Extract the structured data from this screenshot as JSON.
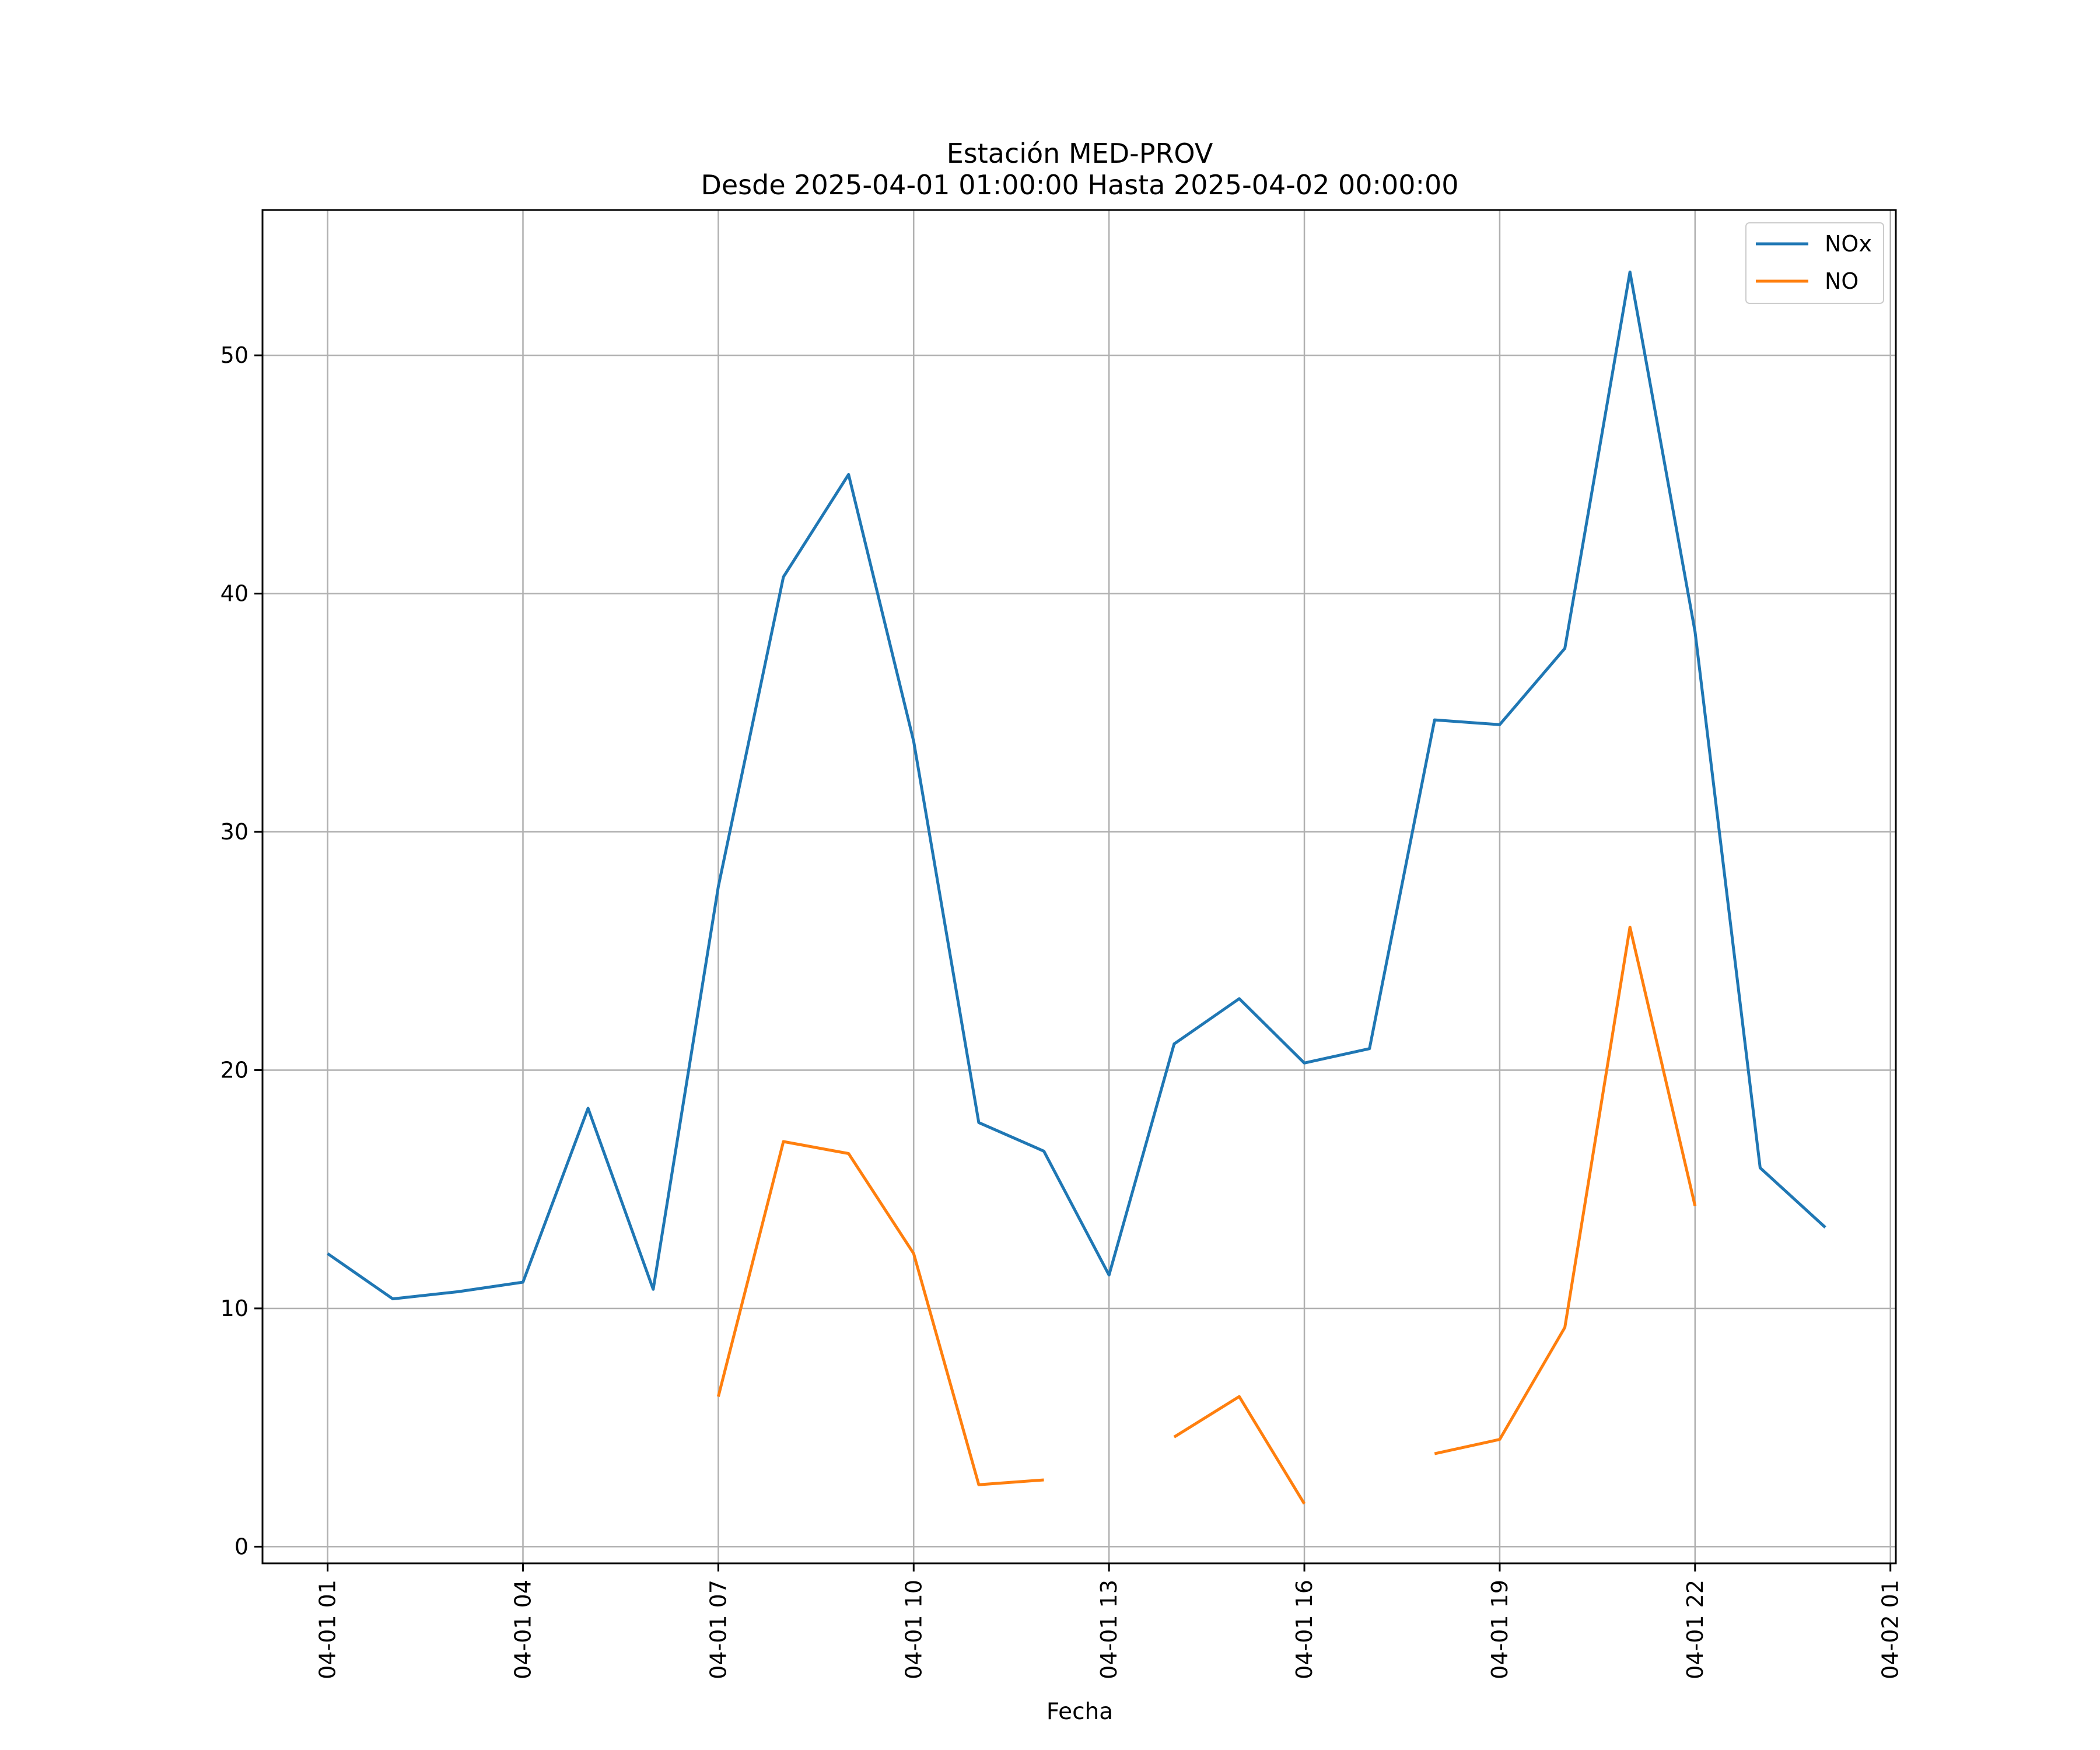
{
  "chart_data": {
    "type": "line",
    "title": "Estación MED-PROV",
    "subtitle": "Desde 2025-04-01 01:00:00 Hasta 2025-04-02 00:00:00",
    "xlabel": "Fecha",
    "ylabel": "",
    "x": [
      "04-01 01",
      "04-01 02",
      "04-01 03",
      "04-01 04",
      "04-01 05",
      "04-01 06",
      "04-01 07",
      "04-01 08",
      "04-01 09",
      "04-01 10",
      "04-01 11",
      "04-01 12",
      "04-01 13",
      "04-01 14",
      "04-01 15",
      "04-01 16",
      "04-01 17",
      "04-01 18",
      "04-01 19",
      "04-01 20",
      "04-01 21",
      "04-01 22",
      "04-01 23",
      "04-02 00"
    ],
    "series": [
      {
        "name": "NOx",
        "color": "#1f77b4",
        "values": [
          12.3,
          10.4,
          10.7,
          11.1,
          18.4,
          10.8,
          27.7,
          40.7,
          45.0,
          33.8,
          17.8,
          16.6,
          11.4,
          21.1,
          23.0,
          20.3,
          20.9,
          34.7,
          34.5,
          37.7,
          53.5,
          38.4,
          15.9,
          13.4
        ]
      },
      {
        "name": "NO",
        "color": "#ff7f0e",
        "values": [
          null,
          null,
          null,
          null,
          null,
          null,
          6.3,
          17.0,
          16.5,
          12.3,
          2.6,
          2.8,
          null,
          4.6,
          6.3,
          1.8,
          null,
          3.9,
          4.5,
          9.2,
          26.0,
          14.3,
          null,
          null
        ]
      }
    ],
    "xticks": [
      "04-01 01",
      "04-01 04",
      "04-01 07",
      "04-01 10",
      "04-01 13",
      "04-01 16",
      "04-01 19",
      "04-01 22",
      "04-02 01"
    ],
    "yticks": [
      "0",
      "10",
      "20",
      "30",
      "40",
      "50"
    ],
    "xlim": [
      "04-01 00:00",
      "04-02 01:05"
    ],
    "ylim": [
      -0.7,
      56.1
    ],
    "grid": true,
    "legend": "top-right"
  }
}
